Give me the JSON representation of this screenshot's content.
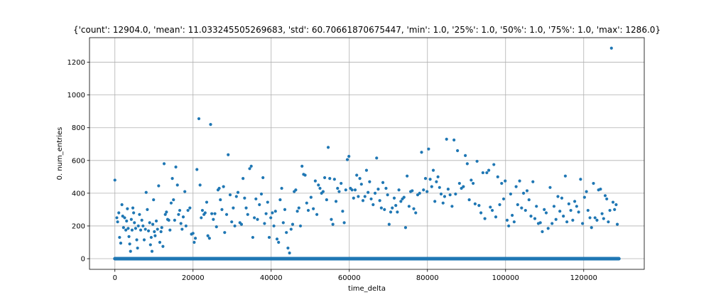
{
  "chart_data": {
    "type": "scatter",
    "title": "{'count': 12904.0, 'mean': 11.033245505269683, 'std': 60.70661870675447, 'min': 1.0, '25%': 1.0, '50%': 1.0, '75%': 1.0, 'max': 1286.0}",
    "xlabel": "time_delta",
    "ylabel": "0. num_entries",
    "xlim": [
      -6500,
      135500
    ],
    "ylim": [
      -65,
      1350
    ],
    "xticks": [
      0,
      20000,
      40000,
      60000,
      80000,
      100000,
      120000
    ],
    "xtick_labels": [
      "0",
      "20000",
      "40000",
      "60000",
      "80000",
      "100000",
      "120000"
    ],
    "yticks": [
      0,
      200,
      400,
      600,
      800,
      1000,
      1200
    ],
    "ytick_labels": [
      "0",
      "200",
      "400",
      "600",
      "800",
      "1000",
      "1200"
    ],
    "grid": true,
    "color": "#1f77b4",
    "baseline": {
      "y": 0,
      "x_range": [
        0,
        129000
      ]
    },
    "points": [
      [
        0,
        480
      ],
      [
        500,
        250
      ],
      [
        700,
        225
      ],
      [
        1000,
        280
      ],
      [
        1200,
        130
      ],
      [
        1500,
        95
      ],
      [
        1800,
        330
      ],
      [
        2000,
        260
      ],
      [
        2200,
        190
      ],
      [
        2500,
        250
      ],
      [
        2800,
        175
      ],
      [
        3000,
        230
      ],
      [
        3200,
        305
      ],
      [
        3400,
        185
      ],
      [
        3600,
        135
      ],
      [
        3800,
        90
      ],
      [
        4000,
        45
      ],
      [
        4200,
        240
      ],
      [
        4400,
        175
      ],
      [
        4600,
        310
      ],
      [
        4800,
        280
      ],
      [
        5000,
        220
      ],
      [
        5300,
        185
      ],
      [
        5600,
        115
      ],
      [
        5800,
        65
      ],
      [
        6000,
        200
      ],
      [
        6300,
        270
      ],
      [
        6600,
        175
      ],
      [
        6900,
        235
      ],
      [
        7200,
        200
      ],
      [
        7500,
        115
      ],
      [
        7800,
        180
      ],
      [
        8000,
        405
      ],
      [
        8300,
        300
      ],
      [
        8600,
        170
      ],
      [
        8900,
        220
      ],
      [
        9100,
        85
      ],
      [
        9300,
        130
      ],
      [
        9500,
        45
      ],
      [
        9700,
        210
      ],
      [
        9900,
        360
      ],
      [
        10100,
        165
      ],
      [
        10300,
        140
      ],
      [
        10600,
        230
      ],
      [
        10900,
        180
      ],
      [
        11200,
        445
      ],
      [
        11500,
        100
      ],
      [
        11800,
        165
      ],
      [
        12000,
        190
      ],
      [
        12300,
        75
      ],
      [
        12600,
        580
      ],
      [
        12900,
        270
      ],
      [
        13200,
        285
      ],
      [
        13500,
        240
      ],
      [
        13800,
        235
      ],
      [
        14100,
        175
      ],
      [
        14400,
        340
      ],
      [
        14700,
        490
      ],
      [
        15000,
        360
      ],
      [
        15300,
        235
      ],
      [
        15600,
        560
      ],
      [
        16000,
        450
      ],
      [
        16300,
        270
      ],
      [
        16600,
        295
      ],
      [
        16900,
        215
      ],
      [
        17200,
        180
      ],
      [
        17500,
        255
      ],
      [
        17900,
        410
      ],
      [
        18200,
        200
      ],
      [
        18700,
        295
      ],
      [
        19200,
        310
      ],
      [
        19600,
        150
      ],
      [
        20000,
        155
      ],
      [
        20300,
        100
      ],
      [
        20600,
        125
      ],
      [
        21000,
        545
      ],
      [
        21500,
        855
      ],
      [
        21800,
        450
      ],
      [
        22100,
        250
      ],
      [
        22400,
        295
      ],
      [
        22800,
        270
      ],
      [
        23100,
        280
      ],
      [
        23500,
        345
      ],
      [
        23800,
        140
      ],
      [
        24200,
        125
      ],
      [
        24500,
        820
      ],
      [
        24800,
        275
      ],
      [
        25200,
        240
      ],
      [
        25600,
        275
      ],
      [
        26000,
        195
      ],
      [
        26400,
        420
      ],
      [
        26700,
        430
      ],
      [
        27000,
        360
      ],
      [
        27400,
        300
      ],
      [
        27800,
        440
      ],
      [
        28100,
        160
      ],
      [
        28600,
        270
      ],
      [
        29000,
        635
      ],
      [
        29500,
        390
      ],
      [
        29900,
        225
      ],
      [
        30300,
        310
      ],
      [
        30700,
        200
      ],
      [
        31100,
        380
      ],
      [
        31500,
        405
      ],
      [
        32000,
        220
      ],
      [
        32400,
        210
      ],
      [
        32800,
        490
      ],
      [
        33200,
        370
      ],
      [
        33600,
        310
      ],
      [
        34000,
        270
      ],
      [
        34500,
        550
      ],
      [
        34900,
        565
      ],
      [
        35300,
        130
      ],
      [
        35700,
        250
      ],
      [
        36100,
        365
      ],
      [
        36500,
        240
      ],
      [
        37000,
        330
      ],
      [
        37500,
        395
      ],
      [
        37900,
        495
      ],
      [
        38300,
        215
      ],
      [
        38700,
        275
      ],
      [
        39100,
        345
      ],
      [
        39500,
        130
      ],
      [
        39900,
        250
      ],
      [
        40300,
        280
      ],
      [
        40700,
        200
      ],
      [
        41100,
        290
      ],
      [
        41500,
        120
      ],
      [
        41900,
        100
      ],
      [
        42300,
        360
      ],
      [
        42700,
        430
      ],
      [
        43100,
        220
      ],
      [
        43500,
        300
      ],
      [
        43900,
        160
      ],
      [
        44300,
        65
      ],
      [
        44700,
        35
      ],
      [
        45100,
        180
      ],
      [
        45500,
        210
      ],
      [
        45900,
        410
      ],
      [
        46300,
        420
      ],
      [
        46700,
        290
      ],
      [
        47100,
        310
      ],
      [
        47500,
        200
      ],
      [
        47900,
        565
      ],
      [
        48300,
        515
      ],
      [
        48700,
        510
      ],
      [
        49100,
        340
      ],
      [
        49500,
        295
      ],
      [
        50200,
        375
      ],
      [
        50800,
        305
      ],
      [
        51300,
        475
      ],
      [
        51700,
        270
      ],
      [
        52100,
        450
      ],
      [
        52500,
        430
      ],
      [
        52900,
        400
      ],
      [
        53300,
        410
      ],
      [
        53700,
        495
      ],
      [
        54200,
        360
      ],
      [
        54600,
        680
      ],
      [
        55000,
        490
      ],
      [
        55400,
        240
      ],
      [
        55800,
        210
      ],
      [
        56200,
        485
      ],
      [
        56600,
        350
      ],
      [
        57000,
        430
      ],
      [
        57400,
        410
      ],
      [
        57900,
        460
      ],
      [
        58300,
        290
      ],
      [
        58700,
        220
      ],
      [
        59100,
        420
      ],
      [
        59500,
        605
      ],
      [
        59900,
        625
      ],
      [
        60300,
        430
      ],
      [
        60700,
        420
      ],
      [
        61100,
        370
      ],
      [
        61500,
        420
      ],
      [
        61900,
        510
      ],
      [
        62300,
        380
      ],
      [
        62700,
        490
      ],
      [
        63100,
        455
      ],
      [
        63500,
        355
      ],
      [
        64000,
        380
      ],
      [
        64400,
        540
      ],
      [
        64800,
        405
      ],
      [
        65200,
        470
      ],
      [
        65600,
        365
      ],
      [
        66100,
        330
      ],
      [
        66600,
        400
      ],
      [
        67000,
        615
      ],
      [
        67400,
        425
      ],
      [
        67800,
        355
      ],
      [
        68200,
        310
      ],
      [
        68600,
        465
      ],
      [
        69000,
        300
      ],
      [
        69400,
        430
      ],
      [
        69800,
        390
      ],
      [
        70200,
        210
      ],
      [
        70600,
        285
      ],
      [
        71000,
        310
      ],
      [
        71500,
        370
      ],
      [
        71900,
        325
      ],
      [
        72300,
        285
      ],
      [
        72700,
        420
      ],
      [
        73200,
        350
      ],
      [
        73600,
        365
      ],
      [
        74000,
        375
      ],
      [
        74400,
        190
      ],
      [
        74800,
        505
      ],
      [
        75300,
        320
      ],
      [
        75700,
        410
      ],
      [
        76100,
        415
      ],
      [
        76500,
        305
      ],
      [
        77000,
        280
      ],
      [
        77500,
        390
      ],
      [
        78000,
        400
      ],
      [
        78500,
        650
      ],
      [
        79000,
        420
      ],
      [
        79500,
        490
      ],
      [
        79900,
        410
      ],
      [
        80300,
        670
      ],
      [
        80700,
        485
      ],
      [
        81100,
        440
      ],
      [
        81500,
        540
      ],
      [
        81900,
        350
      ],
      [
        82300,
        470
      ],
      [
        82700,
        500
      ],
      [
        83100,
        435
      ],
      [
        83500,
        395
      ],
      [
        84000,
        340
      ],
      [
        84400,
        380
      ],
      [
        84900,
        730
      ],
      [
        85300,
        425
      ],
      [
        85800,
        390
      ],
      [
        86300,
        320
      ],
      [
        86800,
        725
      ],
      [
        87200,
        395
      ],
      [
        87700,
        660
      ],
      [
        88200,
        460
      ],
      [
        88700,
        430
      ],
      [
        89200,
        440
      ],
      [
        89700,
        630
      ],
      [
        90200,
        580
      ],
      [
        90700,
        360
      ],
      [
        91200,
        480
      ],
      [
        91700,
        460
      ],
      [
        92200,
        335
      ],
      [
        92700,
        595
      ],
      [
        93200,
        325
      ],
      [
        93700,
        280
      ],
      [
        94200,
        525
      ],
      [
        94700,
        245
      ],
      [
        95200,
        525
      ],
      [
        95700,
        540
      ],
      [
        96100,
        315
      ],
      [
        96600,
        295
      ],
      [
        97000,
        575
      ],
      [
        97500,
        255
      ],
      [
        98000,
        500
      ],
      [
        98500,
        330
      ],
      [
        99000,
        460
      ],
      [
        99500,
        365
      ],
      [
        99900,
        475
      ],
      [
        100400,
        235
      ],
      [
        100800,
        200
      ],
      [
        101300,
        395
      ],
      [
        101700,
        265
      ],
      [
        102200,
        225
      ],
      [
        102700,
        440
      ],
      [
        103100,
        330
      ],
      [
        103600,
        475
      ],
      [
        104100,
        310
      ],
      [
        104600,
        400
      ],
      [
        105100,
        295
      ],
      [
        105500,
        415
      ],
      [
        106000,
        360
      ],
      [
        106500,
        260
      ],
      [
        107000,
        470
      ],
      [
        107500,
        245
      ],
      [
        107900,
        320
      ],
      [
        108400,
        215
      ],
      [
        108900,
        220
      ],
      [
        109400,
        165
      ],
      [
        109900,
        300
      ],
      [
        110400,
        280
      ],
      [
        110900,
        185
      ],
      [
        111400,
        435
      ],
      [
        111900,
        215
      ],
      [
        112400,
        320
      ],
      [
        112900,
        240
      ],
      [
        113400,
        380
      ],
      [
        113900,
        290
      ],
      [
        114400,
        370
      ],
      [
        114800,
        260
      ],
      [
        115300,
        505
      ],
      [
        115700,
        225
      ],
      [
        116200,
        335
      ],
      [
        116700,
        295
      ],
      [
        117200,
        235
      ],
      [
        117700,
        350
      ],
      [
        118200,
        320
      ],
      [
        118700,
        285
      ],
      [
        119200,
        485
      ],
      [
        119700,
        215
      ],
      [
        120200,
        375
      ],
      [
        120700,
        410
      ],
      [
        121100,
        295
      ],
      [
        121600,
        250
      ],
      [
        122000,
        190
      ],
      [
        122500,
        460
      ],
      [
        122900,
        250
      ],
      [
        123400,
        235
      ],
      [
        123800,
        420
      ],
      [
        124300,
        425
      ],
      [
        124700,
        275
      ],
      [
        125100,
        245
      ],
      [
        125500,
        385
      ],
      [
        125900,
        365
      ],
      [
        126300,
        225
      ],
      [
        126700,
        295
      ],
      [
        127100,
        1286
      ],
      [
        127500,
        345
      ],
      [
        127900,
        300
      ],
      [
        128300,
        330
      ],
      [
        128600,
        210
      ]
    ]
  }
}
